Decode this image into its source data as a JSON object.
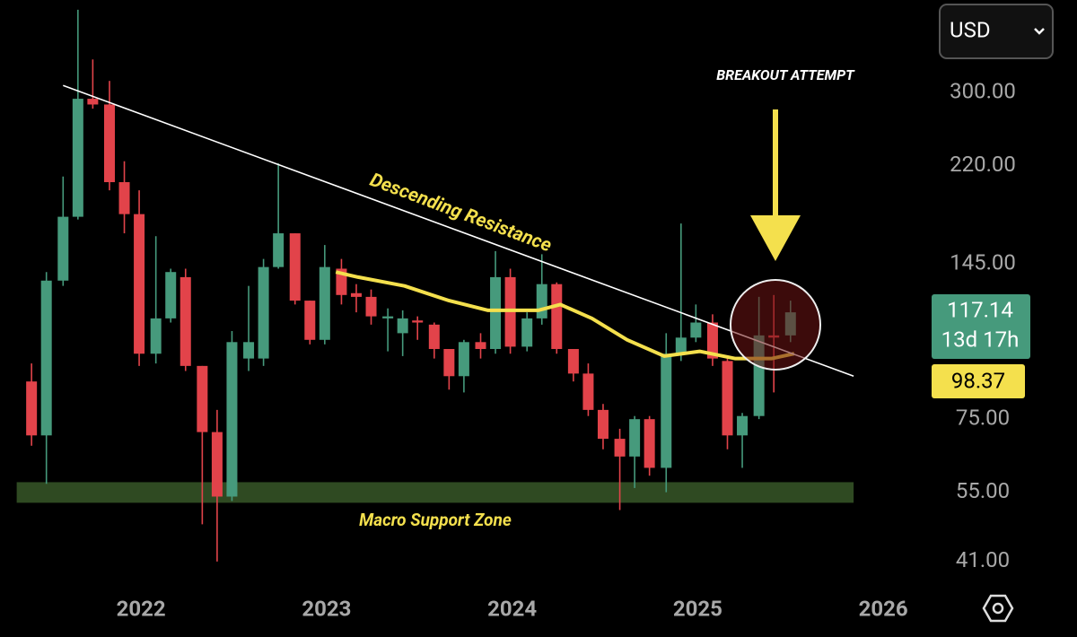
{
  "chart_data": {
    "type": "candlestick",
    "currency": "USD",
    "x": [
      2021.41,
      2021.49,
      2021.58,
      2021.66,
      2021.74,
      2021.83,
      2021.91,
      2021.99,
      2022.08,
      2022.16,
      2022.24,
      2022.33,
      2022.41,
      2022.49,
      2022.58,
      2022.66,
      2022.74,
      2022.83,
      2022.91,
      2022.99,
      2023.08,
      2023.16,
      2023.24,
      2023.33,
      2023.41,
      2023.49,
      2023.58,
      2023.66,
      2023.74,
      2023.83,
      2023.91,
      2023.99,
      2024.08,
      2024.16,
      2024.24,
      2024.33,
      2024.41,
      2024.49,
      2024.58,
      2024.66,
      2024.74,
      2024.83,
      2024.91,
      2024.99,
      2025.08,
      2025.16,
      2025.24,
      2025.33,
      2025.41,
      2025.5
    ],
    "open": [
      88,
      70,
      135,
      177,
      292,
      285,
      205,
      179,
      99,
      115,
      137,
      94,
      71,
      54,
      97,
      97,
      143,
      165,
      124,
      105,
      142,
      128,
      126,
      115,
      108,
      114,
      112,
      101,
      90,
      104,
      101,
      137,
      102,
      115,
      133,
      101,
      91,
      78,
      69,
      64,
      75,
      61,
      99,
      106,
      113,
      96,
      70,
      76,
      107,
      107
    ],
    "high": [
      95,
      140,
      210,
      426,
      345,
      315,
      224,
      198,
      163,
      142,
      142,
      94,
      78,
      109,
      132,
      148,
      222,
      165,
      124,
      157,
      148,
      133,
      130,
      120,
      119,
      116,
      113,
      101,
      105,
      108,
      153,
      142,
      118,
      151,
      134,
      101,
      95,
      80,
      72,
      76,
      76,
      108,
      172,
      122,
      117,
      97,
      77,
      126,
      127,
      124
    ],
    "low": [
      67,
      57,
      132,
      175,
      280,
      198,
      165,
      94,
      95,
      113,
      92,
      48,
      41,
      53,
      92,
      94,
      142,
      122,
      103,
      103,
      122,
      118,
      112,
      100,
      98,
      105,
      97,
      85,
      84,
      97,
      99,
      99,
      100,
      112,
      99,
      88,
      76,
      66,
      51,
      56,
      59,
      55,
      96,
      104,
      94,
      66,
      61,
      75,
      84,
      104
    ],
    "close": [
      70,
      135,
      177,
      292,
      285,
      205,
      179,
      99,
      115,
      140,
      94,
      71,
      54,
      104,
      104,
      143,
      165,
      124,
      105,
      143,
      127,
      126,
      116,
      116,
      115,
      113,
      101,
      90,
      104,
      101,
      137,
      102,
      115,
      133,
      101,
      91,
      78,
      69,
      64,
      75,
      61,
      99,
      106,
      113,
      97,
      70,
      76,
      107,
      106,
      118
    ],
    "up_color": "#469a7c",
    "down_color": "#e2434a",
    "ma": {
      "x": [
        2023.05,
        2023.17,
        2023.42,
        2023.66,
        2023.87,
        2024.14,
        2024.26,
        2024.43,
        2024.62,
        2024.82,
        2025.01,
        2025.2,
        2025.4,
        2025.52
      ],
      "values": [
        140,
        137,
        132,
        124,
        119,
        119,
        122,
        115,
        105,
        98,
        100,
        97,
        97,
        99
      ],
      "color": "#f4e04d"
    },
    "resistance": {
      "x": [
        2021.58,
        2025.84
      ],
      "values": [
        309,
        90
      ],
      "color": "#ffffff",
      "label": "Descending Resistance"
    },
    "support_zone": {
      "x": [
        2021.33,
        2025.84
      ],
      "values": [
        52.6,
        57.4
      ],
      "color": "#2f4a22",
      "label": "Macro Support Zone"
    },
    "annotation": "BREAKOUT ATTEMPT",
    "last_price": 117.14,
    "countdown": "13d 17h",
    "ma_last": 98.37,
    "log_scale": true,
    "xlim": [
      2021.24,
      2026.27
    ],
    "xticks": [
      2022,
      2023,
      2024,
      2025,
      2026
    ],
    "ylim": [
      36,
      444
    ],
    "yticks": [
      {
        "value": 300,
        "label": "300.00"
      },
      {
        "value": 220,
        "label": "220.00"
      },
      {
        "value": 145,
        "label": "145.00"
      },
      {
        "value": 75,
        "label": "75.00"
      },
      {
        "value": 55,
        "label": "55.00"
      },
      {
        "value": 41,
        "label": "41.00"
      }
    ]
  }
}
